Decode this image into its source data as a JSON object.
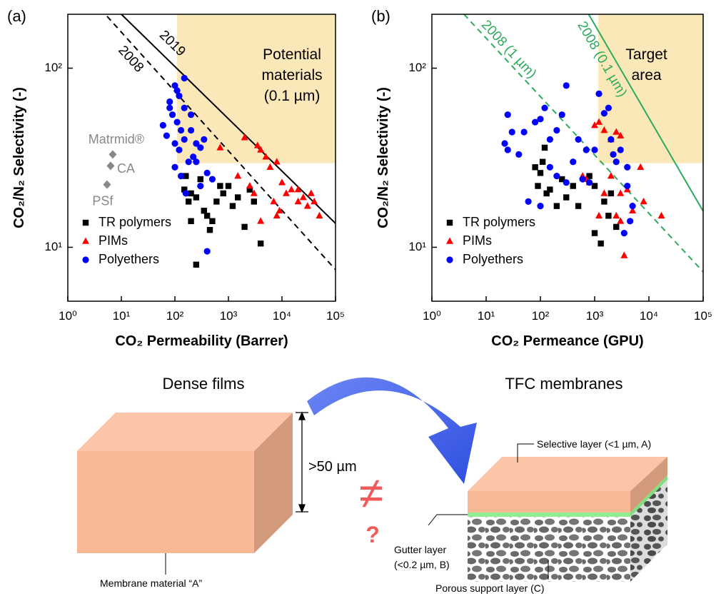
{
  "chart_data": [
    {
      "type": "scatter",
      "panel_label": "(a)",
      "xlabel": "CO₂ Permeability (Barrer)",
      "ylabel": "CO₂/N₂ Selectivity (-)",
      "log_x": true,
      "log_y": true,
      "xlim": [
        1,
        100000
      ],
      "ylim": [
        5,
        200
      ],
      "xticks": [
        {
          "value": 1,
          "label": "10⁰"
        },
        {
          "value": 10,
          "label": "10¹"
        },
        {
          "value": 100,
          "label": "10²"
        },
        {
          "value": 1000,
          "label": "10³"
        },
        {
          "value": 10000,
          "label": "10⁴"
        },
        {
          "value": 100000,
          "label": "10⁵"
        }
      ],
      "yticks": [
        {
          "value": 10,
          "label": "10¹"
        },
        {
          "value": 100,
          "label": "10²"
        }
      ],
      "legend": "lower left",
      "regions": [
        {
          "label": [
            "Potential",
            "materials",
            "(0.1 µm)"
          ],
          "color": "#fbe8b8",
          "x": [
            110,
            100000
          ],
          "y": [
            29.5,
            200
          ]
        }
      ],
      "lines": [
        {
          "label": "2019",
          "color": "#000000",
          "dashed": false,
          "x": [
            10,
            100000
          ],
          "values": [
            200,
            13.6
          ]
        },
        {
          "label": "2008",
          "color": "#000000",
          "dashed": true,
          "x": [
            5.4,
            100000
          ],
          "values": [
            195,
            7.5
          ]
        }
      ],
      "references": [
        {
          "label": "Matrmid®",
          "color": "#888888",
          "x": 6.9,
          "y": 33
        },
        {
          "label": "CA",
          "color": "#888888",
          "x": 6.3,
          "y": 28.5
        },
        {
          "label": "PSf",
          "color": "#888888",
          "x": 5.4,
          "y": 22.4
        }
      ],
      "series": [
        {
          "name": "TR polymers",
          "color": "#000000",
          "marker": "square",
          "x": [
            150,
            180,
            200,
            250,
            300,
            350,
            400,
            500,
            600,
            800,
            1000,
            1500,
            2000,
            3000,
            4000,
            250,
            200,
            700,
            1200,
            2500,
            450,
            160
          ],
          "values": [
            21,
            18,
            20,
            19,
            24,
            16,
            15,
            14,
            18,
            20,
            22,
            19,
            13,
            18,
            10.5,
            8,
            14,
            22,
            17,
            21,
            12.5,
            25
          ]
        },
        {
          "name": "PIMs",
          "color": "#ff0000",
          "marker": "triangle",
          "x": [
            1500,
            2000,
            2500,
            3000,
            3500,
            4000,
            5000,
            6000,
            8000,
            10000,
            12000,
            15000,
            20000,
            25000,
            30000,
            40000,
            50000,
            7000,
            9000,
            4000,
            700,
            20000,
            35000,
            8000
          ],
          "values": [
            25,
            41,
            22,
            20,
            37,
            35,
            32,
            28,
            30,
            23,
            20,
            21,
            18,
            19,
            17,
            18,
            15,
            18,
            16,
            14,
            36,
            21,
            20,
            15
          ]
        },
        {
          "name": "Polyethers",
          "color": "#0000ff",
          "marker": "circle",
          "x": [
            100,
            120,
            150,
            80,
            90,
            110,
            130,
            60,
            70,
            100,
            120,
            150,
            200,
            250,
            300,
            200,
            150,
            180,
            220,
            100,
            300,
            400,
            500,
            130,
            160,
            400,
            80,
            110,
            250,
            350
          ],
          "values": [
            80,
            70,
            88,
            60,
            55,
            50,
            45,
            48,
            42,
            38,
            35,
            40,
            45,
            38,
            36,
            55,
            60,
            30,
            32,
            28,
            22,
            26,
            24,
            25,
            20,
            9.5,
            65,
            75,
            30,
            40
          ]
        }
      ]
    },
    {
      "type": "scatter",
      "panel_label": "(b)",
      "xlabel": "CO₂ Permeance (GPU)",
      "ylabel": "CO₂/N₂ Selectivity (-)",
      "log_x": true,
      "log_y": true,
      "xlim": [
        1,
        100000
      ],
      "ylim": [
        5,
        200
      ],
      "xticks": [
        {
          "value": 1,
          "label": "10⁰"
        },
        {
          "value": 10,
          "label": "10¹"
        },
        {
          "value": 100,
          "label": "10²"
        },
        {
          "value": 1000,
          "label": "10³"
        },
        {
          "value": 10000,
          "label": "10⁴"
        },
        {
          "value": 100000,
          "label": "10⁵"
        }
      ],
      "yticks": [
        {
          "value": 10,
          "label": "10¹"
        },
        {
          "value": 100,
          "label": "10²"
        }
      ],
      "legend": "lower left",
      "regions": [
        {
          "label": [
            "Target",
            "area"
          ],
          "color": "#fbe8b8",
          "x": [
            1170,
            100000
          ],
          "y": [
            29.5,
            200
          ]
        }
      ],
      "lines": [
        {
          "label": "2008 (0.1 µm)",
          "color": "#2eaa5c",
          "dashed": false,
          "x": [
            776,
            100000
          ],
          "values": [
            200,
            15.9
          ]
        },
        {
          "label": "2008 (1 µm)",
          "color": "#2eaa5c",
          "dashed": true,
          "x": [
            3.9,
            100000
          ],
          "values": [
            200,
            7.3
          ]
        }
      ],
      "series": [
        {
          "name": "TR polymers",
          "color": "#000000",
          "marker": "square",
          "x": [
            80,
            90,
            100,
            110,
            120,
            130,
            150,
            200,
            250,
            300,
            400,
            500,
            800,
            1000,
            1300,
            1500,
            1800,
            2000,
            2500,
            1000
          ],
          "values": [
            28,
            22,
            26,
            30,
            36,
            20,
            21,
            17,
            24,
            19,
            22,
            17,
            25,
            12,
            10.5,
            18,
            15,
            20,
            13,
            22
          ]
        },
        {
          "name": "PIMs",
          "color": "#ff0000",
          "marker": "triangle",
          "x": [
            1000,
            1200,
            1500,
            2000,
            2500,
            3000,
            600,
            700,
            800,
            1200,
            1500,
            2000,
            2500,
            3000,
            3500,
            4000,
            5000,
            7000,
            8000,
            17000,
            3000
          ],
          "values": [
            48,
            50,
            45,
            40,
            44,
            42,
            25,
            24,
            23,
            15,
            20,
            25,
            15,
            20,
            9,
            21,
            16,
            28,
            18,
            15,
            14
          ]
        },
        {
          "name": "Polyethers",
          "color": "#0000ff",
          "marker": "circle",
          "x": [
            25,
            30,
            22,
            25,
            40,
            50,
            60,
            80,
            100,
            120,
            150,
            200,
            250,
            300,
            300,
            400,
            500,
            600,
            800,
            1000,
            1200,
            1500,
            1800,
            2000,
            2200,
            2500,
            3000,
            4000,
            3500,
            4000,
            5000,
            150,
            200,
            100,
            700,
            4500
          ],
          "values": [
            55,
            44,
            38,
            35,
            33,
            44,
            18,
            50,
            52,
            60,
            40,
            45,
            55,
            80,
            23,
            30,
            40,
            24,
            23,
            35,
            72,
            56,
            60,
            40,
            33,
            30,
            35,
            28,
            12,
            22,
            17,
            28,
            25,
            17,
            35,
            14
          ]
        }
      ]
    }
  ],
  "diagram": {
    "left_title": "Dense films",
    "right_title": "TFC membranes",
    "thickness": ">50 µm",
    "not_equal": "≠",
    "question": "?",
    "left_caption": "Membrane material “A”",
    "selective": "Selective layer (<1 µm, A)",
    "gutter": [
      "Gutter layer",
      "(<0.2 µm, B)"
    ],
    "support": "Porous support layer (C)"
  }
}
